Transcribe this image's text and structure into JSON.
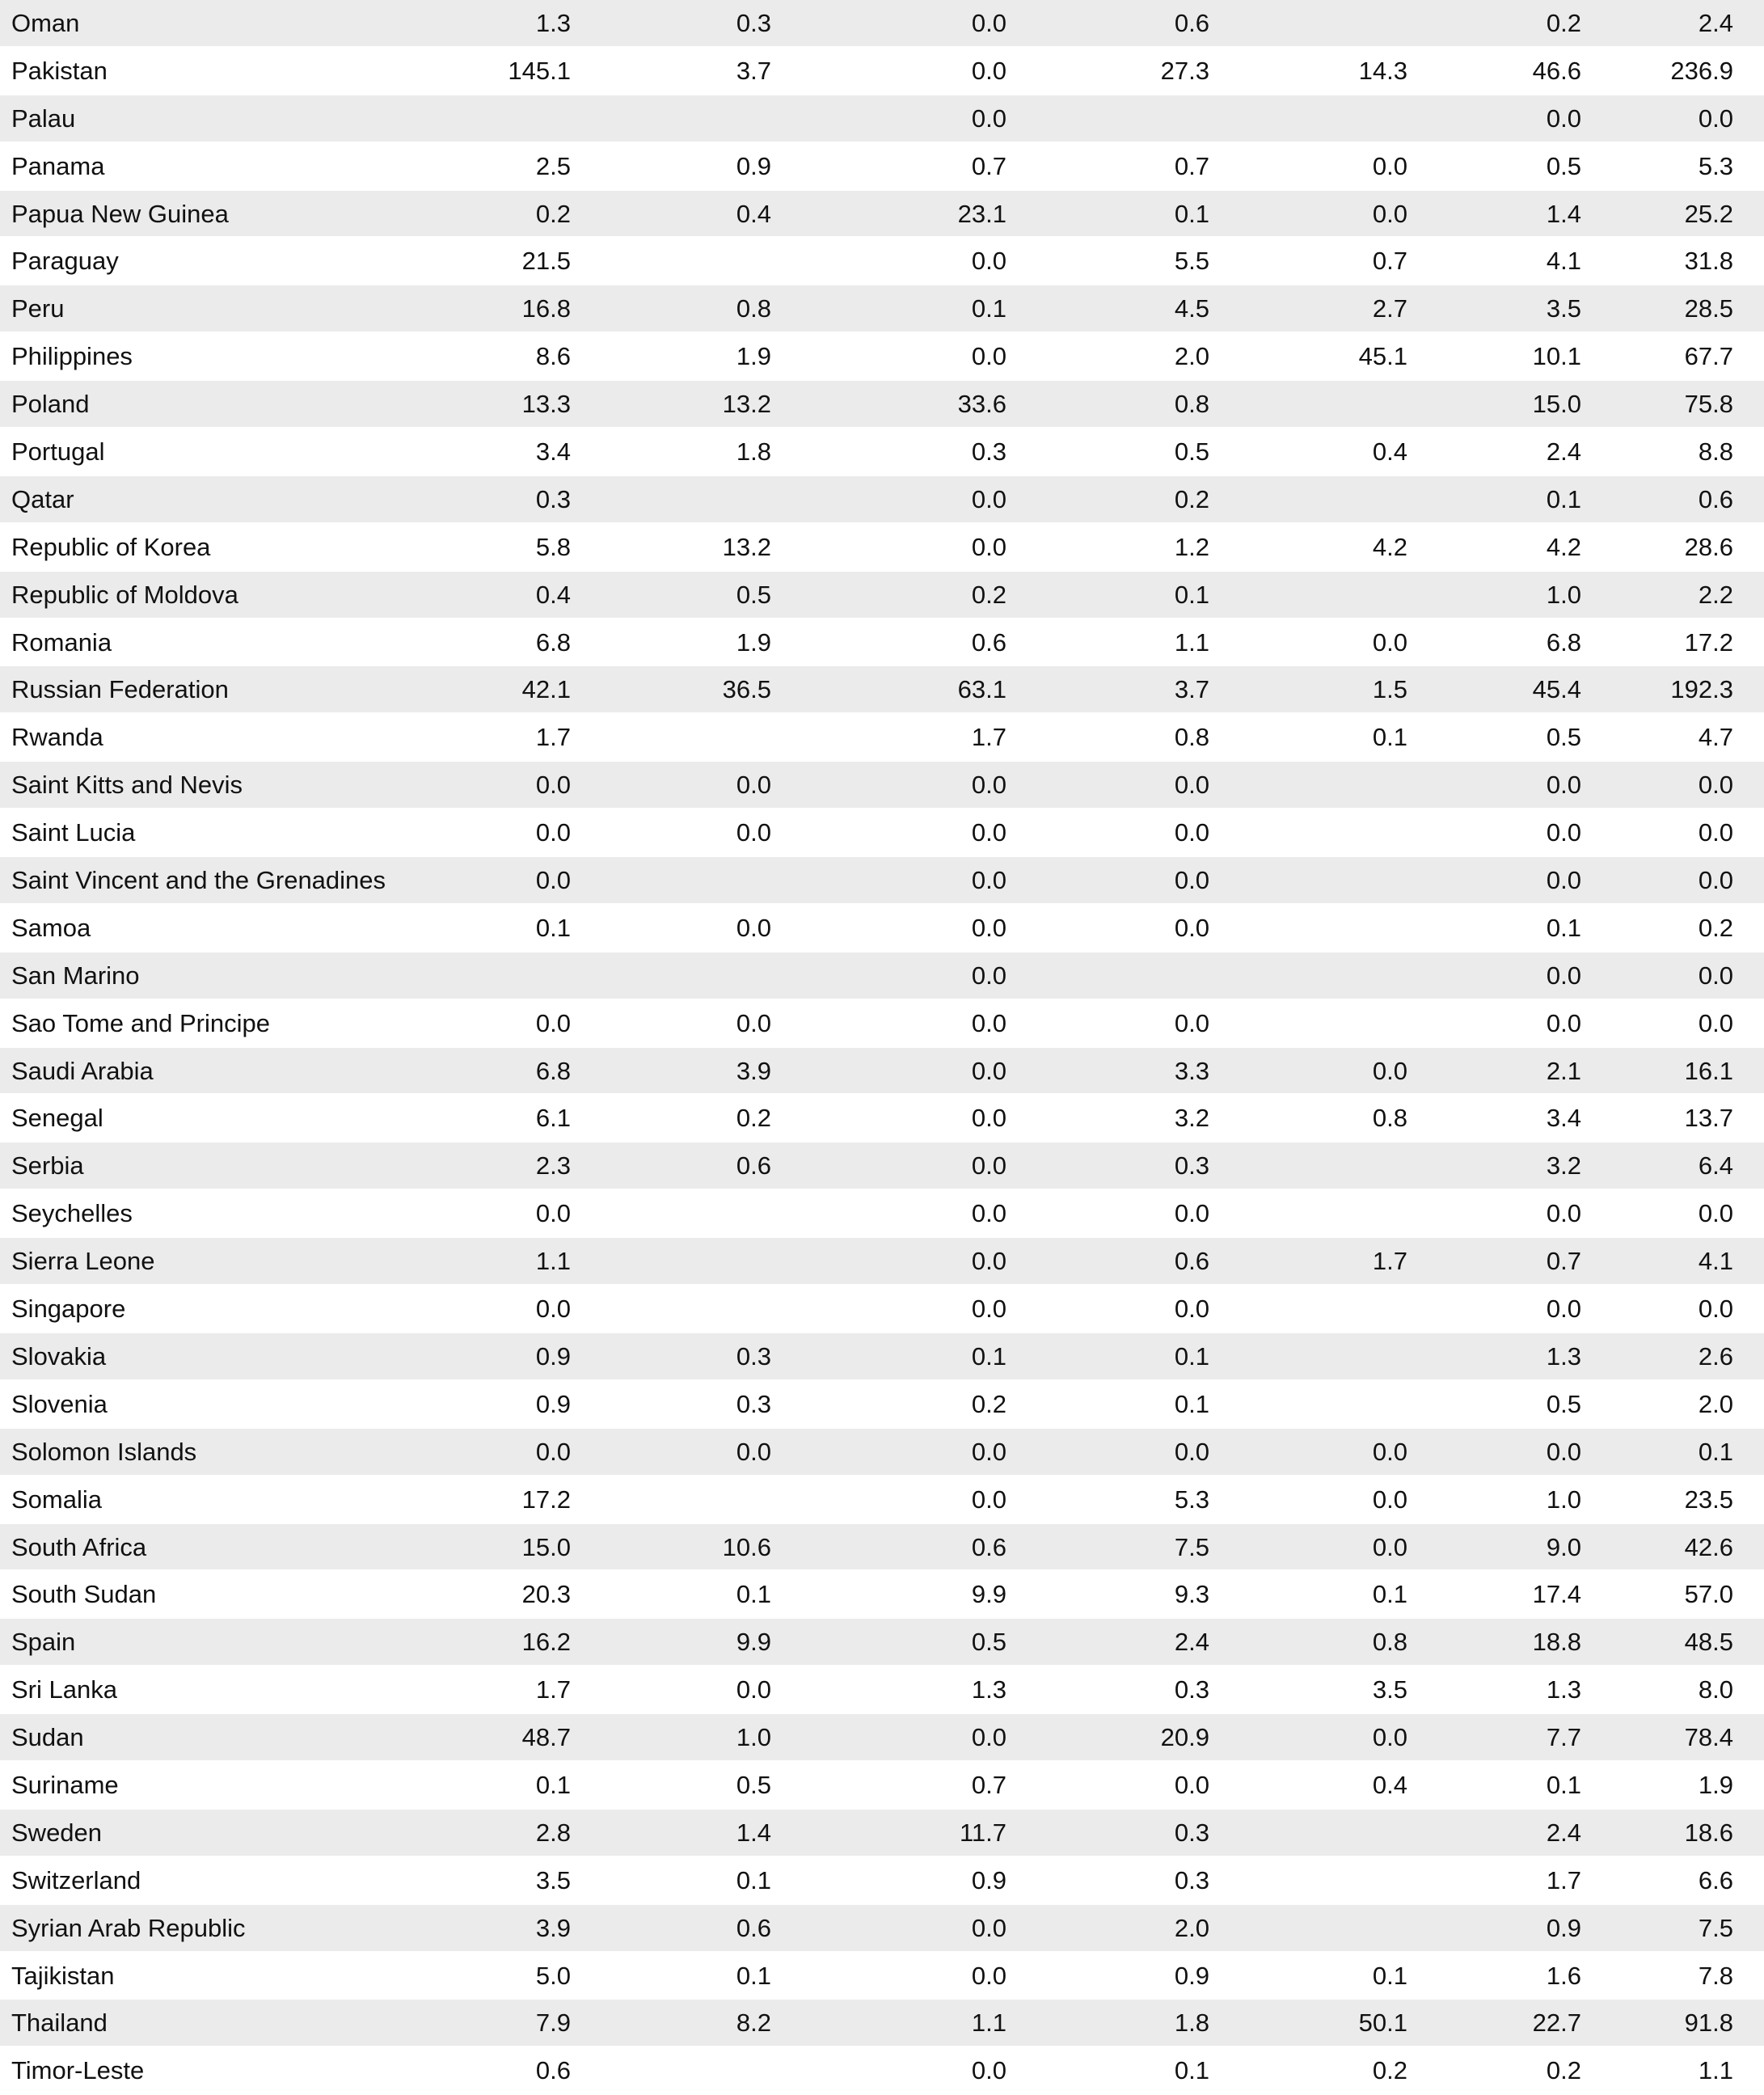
{
  "rows": [
    [
      "Oman",
      "1.3",
      "0.3",
      "0.0",
      "0.6",
      "",
      "0.2",
      "2.4"
    ],
    [
      "Pakistan",
      "145.1",
      "3.7",
      "0.0",
      "27.3",
      "14.3",
      "46.6",
      "236.9"
    ],
    [
      "Palau",
      "",
      "",
      "0.0",
      "",
      "",
      "0.0",
      "0.0"
    ],
    [
      "Panama",
      "2.5",
      "0.9",
      "0.7",
      "0.7",
      "0.0",
      "0.5",
      "5.3"
    ],
    [
      "Papua New Guinea",
      "0.2",
      "0.4",
      "23.1",
      "0.1",
      "0.0",
      "1.4",
      "25.2"
    ],
    [
      "Paraguay",
      "21.5",
      "",
      "0.0",
      "5.5",
      "0.7",
      "4.1",
      "31.8"
    ],
    [
      "Peru",
      "16.8",
      "0.8",
      "0.1",
      "4.5",
      "2.7",
      "3.5",
      "28.5"
    ],
    [
      "Philippines",
      "8.6",
      "1.9",
      "0.0",
      "2.0",
      "45.1",
      "10.1",
      "67.7"
    ],
    [
      "Poland",
      "13.3",
      "13.2",
      "33.6",
      "0.8",
      "",
      "15.0",
      "75.8"
    ],
    [
      "Portugal",
      "3.4",
      "1.8",
      "0.3",
      "0.5",
      "0.4",
      "2.4",
      "8.8"
    ],
    [
      "Qatar",
      "0.3",
      "",
      "0.0",
      "0.2",
      "",
      "0.1",
      "0.6"
    ],
    [
      "Republic of Korea",
      "5.8",
      "13.2",
      "0.0",
      "1.2",
      "4.2",
      "4.2",
      "28.6"
    ],
    [
      "Republic of Moldova",
      "0.4",
      "0.5",
      "0.2",
      "0.1",
      "",
      "1.0",
      "2.2"
    ],
    [
      "Romania",
      "6.8",
      "1.9",
      "0.6",
      "1.1",
      "0.0",
      "6.8",
      "17.2"
    ],
    [
      "Russian Federation",
      "42.1",
      "36.5",
      "63.1",
      "3.7",
      "1.5",
      "45.4",
      "192.3"
    ],
    [
      "Rwanda",
      "1.7",
      "",
      "1.7",
      "0.8",
      "0.1",
      "0.5",
      "4.7"
    ],
    [
      "Saint Kitts and Nevis",
      "0.0",
      "0.0",
      "0.0",
      "0.0",
      "",
      "0.0",
      "0.0"
    ],
    [
      "Saint Lucia",
      "0.0",
      "0.0",
      "0.0",
      "0.0",
      "",
      "0.0",
      "0.0"
    ],
    [
      "Saint Vincent and the Grenadines",
      "0.0",
      "",
      "0.0",
      "0.0",
      "",
      "0.0",
      "0.0"
    ],
    [
      "Samoa",
      "0.1",
      "0.0",
      "0.0",
      "0.0",
      "",
      "0.1",
      "0.2"
    ],
    [
      "San Marino",
      "",
      "",
      "0.0",
      "",
      "",
      "0.0",
      "0.0"
    ],
    [
      "Sao Tome and Principe",
      "0.0",
      "0.0",
      "0.0",
      "0.0",
      "",
      "0.0",
      "0.0"
    ],
    [
      "Saudi Arabia",
      "6.8",
      "3.9",
      "0.0",
      "3.3",
      "0.0",
      "2.1",
      "16.1"
    ],
    [
      "Senegal",
      "6.1",
      "0.2",
      "0.0",
      "3.2",
      "0.8",
      "3.4",
      "13.7"
    ],
    [
      "Serbia",
      "2.3",
      "0.6",
      "0.0",
      "0.3",
      "",
      "3.2",
      "6.4"
    ],
    [
      "Seychelles",
      "0.0",
      "",
      "0.0",
      "0.0",
      "",
      "0.0",
      "0.0"
    ],
    [
      "Sierra Leone",
      "1.1",
      "",
      "0.0",
      "0.6",
      "1.7",
      "0.7",
      "4.1"
    ],
    [
      "Singapore",
      "0.0",
      "",
      "0.0",
      "0.0",
      "",
      "0.0",
      "0.0"
    ],
    [
      "Slovakia",
      "0.9",
      "0.3",
      "0.1",
      "0.1",
      "",
      "1.3",
      "2.6"
    ],
    [
      "Slovenia",
      "0.9",
      "0.3",
      "0.2",
      "0.1",
      "",
      "0.5",
      "2.0"
    ],
    [
      "Solomon Islands",
      "0.0",
      "0.0",
      "0.0",
      "0.0",
      "0.0",
      "0.0",
      "0.1"
    ],
    [
      "Somalia",
      "17.2",
      "",
      "0.0",
      "5.3",
      "0.0",
      "1.0",
      "23.5"
    ],
    [
      "South Africa",
      "15.0",
      "10.6",
      "0.6",
      "7.5",
      "0.0",
      "9.0",
      "42.6"
    ],
    [
      "South Sudan",
      "20.3",
      "0.1",
      "9.9",
      "9.3",
      "0.1",
      "17.4",
      "57.0"
    ],
    [
      "Spain",
      "16.2",
      "9.9",
      "0.5",
      "2.4",
      "0.8",
      "18.8",
      "48.5"
    ],
    [
      "Sri Lanka",
      "1.7",
      "0.0",
      "1.3",
      "0.3",
      "3.5",
      "1.3",
      "8.0"
    ],
    [
      "Sudan",
      "48.7",
      "1.0",
      "0.0",
      "20.9",
      "0.0",
      "7.7",
      "78.4"
    ],
    [
      "Suriname",
      "0.1",
      "0.5",
      "0.7",
      "0.0",
      "0.4",
      "0.1",
      "1.9"
    ],
    [
      "Sweden",
      "2.8",
      "1.4",
      "11.7",
      "0.3",
      "",
      "2.4",
      "18.6"
    ],
    [
      "Switzerland",
      "3.5",
      "0.1",
      "0.9",
      "0.3",
      "",
      "1.7",
      "6.6"
    ],
    [
      "Syrian Arab Republic",
      "3.9",
      "0.6",
      "0.0",
      "2.0",
      "",
      "0.9",
      "7.5"
    ],
    [
      "Tajikistan",
      "5.0",
      "0.1",
      "0.0",
      "0.9",
      "0.1",
      "1.6",
      "7.8"
    ],
    [
      "Thailand",
      "7.9",
      "8.2",
      "1.1",
      "1.8",
      "50.1",
      "22.7",
      "91.8"
    ],
    [
      "Timor-Leste",
      "0.6",
      "",
      "0.0",
      "0.1",
      "0.2",
      "0.2",
      "1.1"
    ]
  ]
}
